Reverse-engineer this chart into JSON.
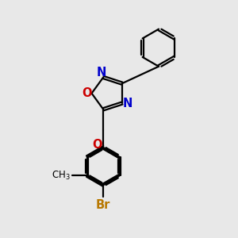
{
  "bg_color": "#e8e8e8",
  "bond_color": "#000000",
  "nitrogen_color": "#0000cc",
  "oxygen_color": "#cc0000",
  "bromine_color": "#b87800",
  "line_width": 1.6,
  "font_size_atom": 10.5,
  "figsize": [
    3.0,
    3.0
  ],
  "dpi": 100,
  "xlim": [
    0,
    10
  ],
  "ylim": [
    0,
    10
  ]
}
